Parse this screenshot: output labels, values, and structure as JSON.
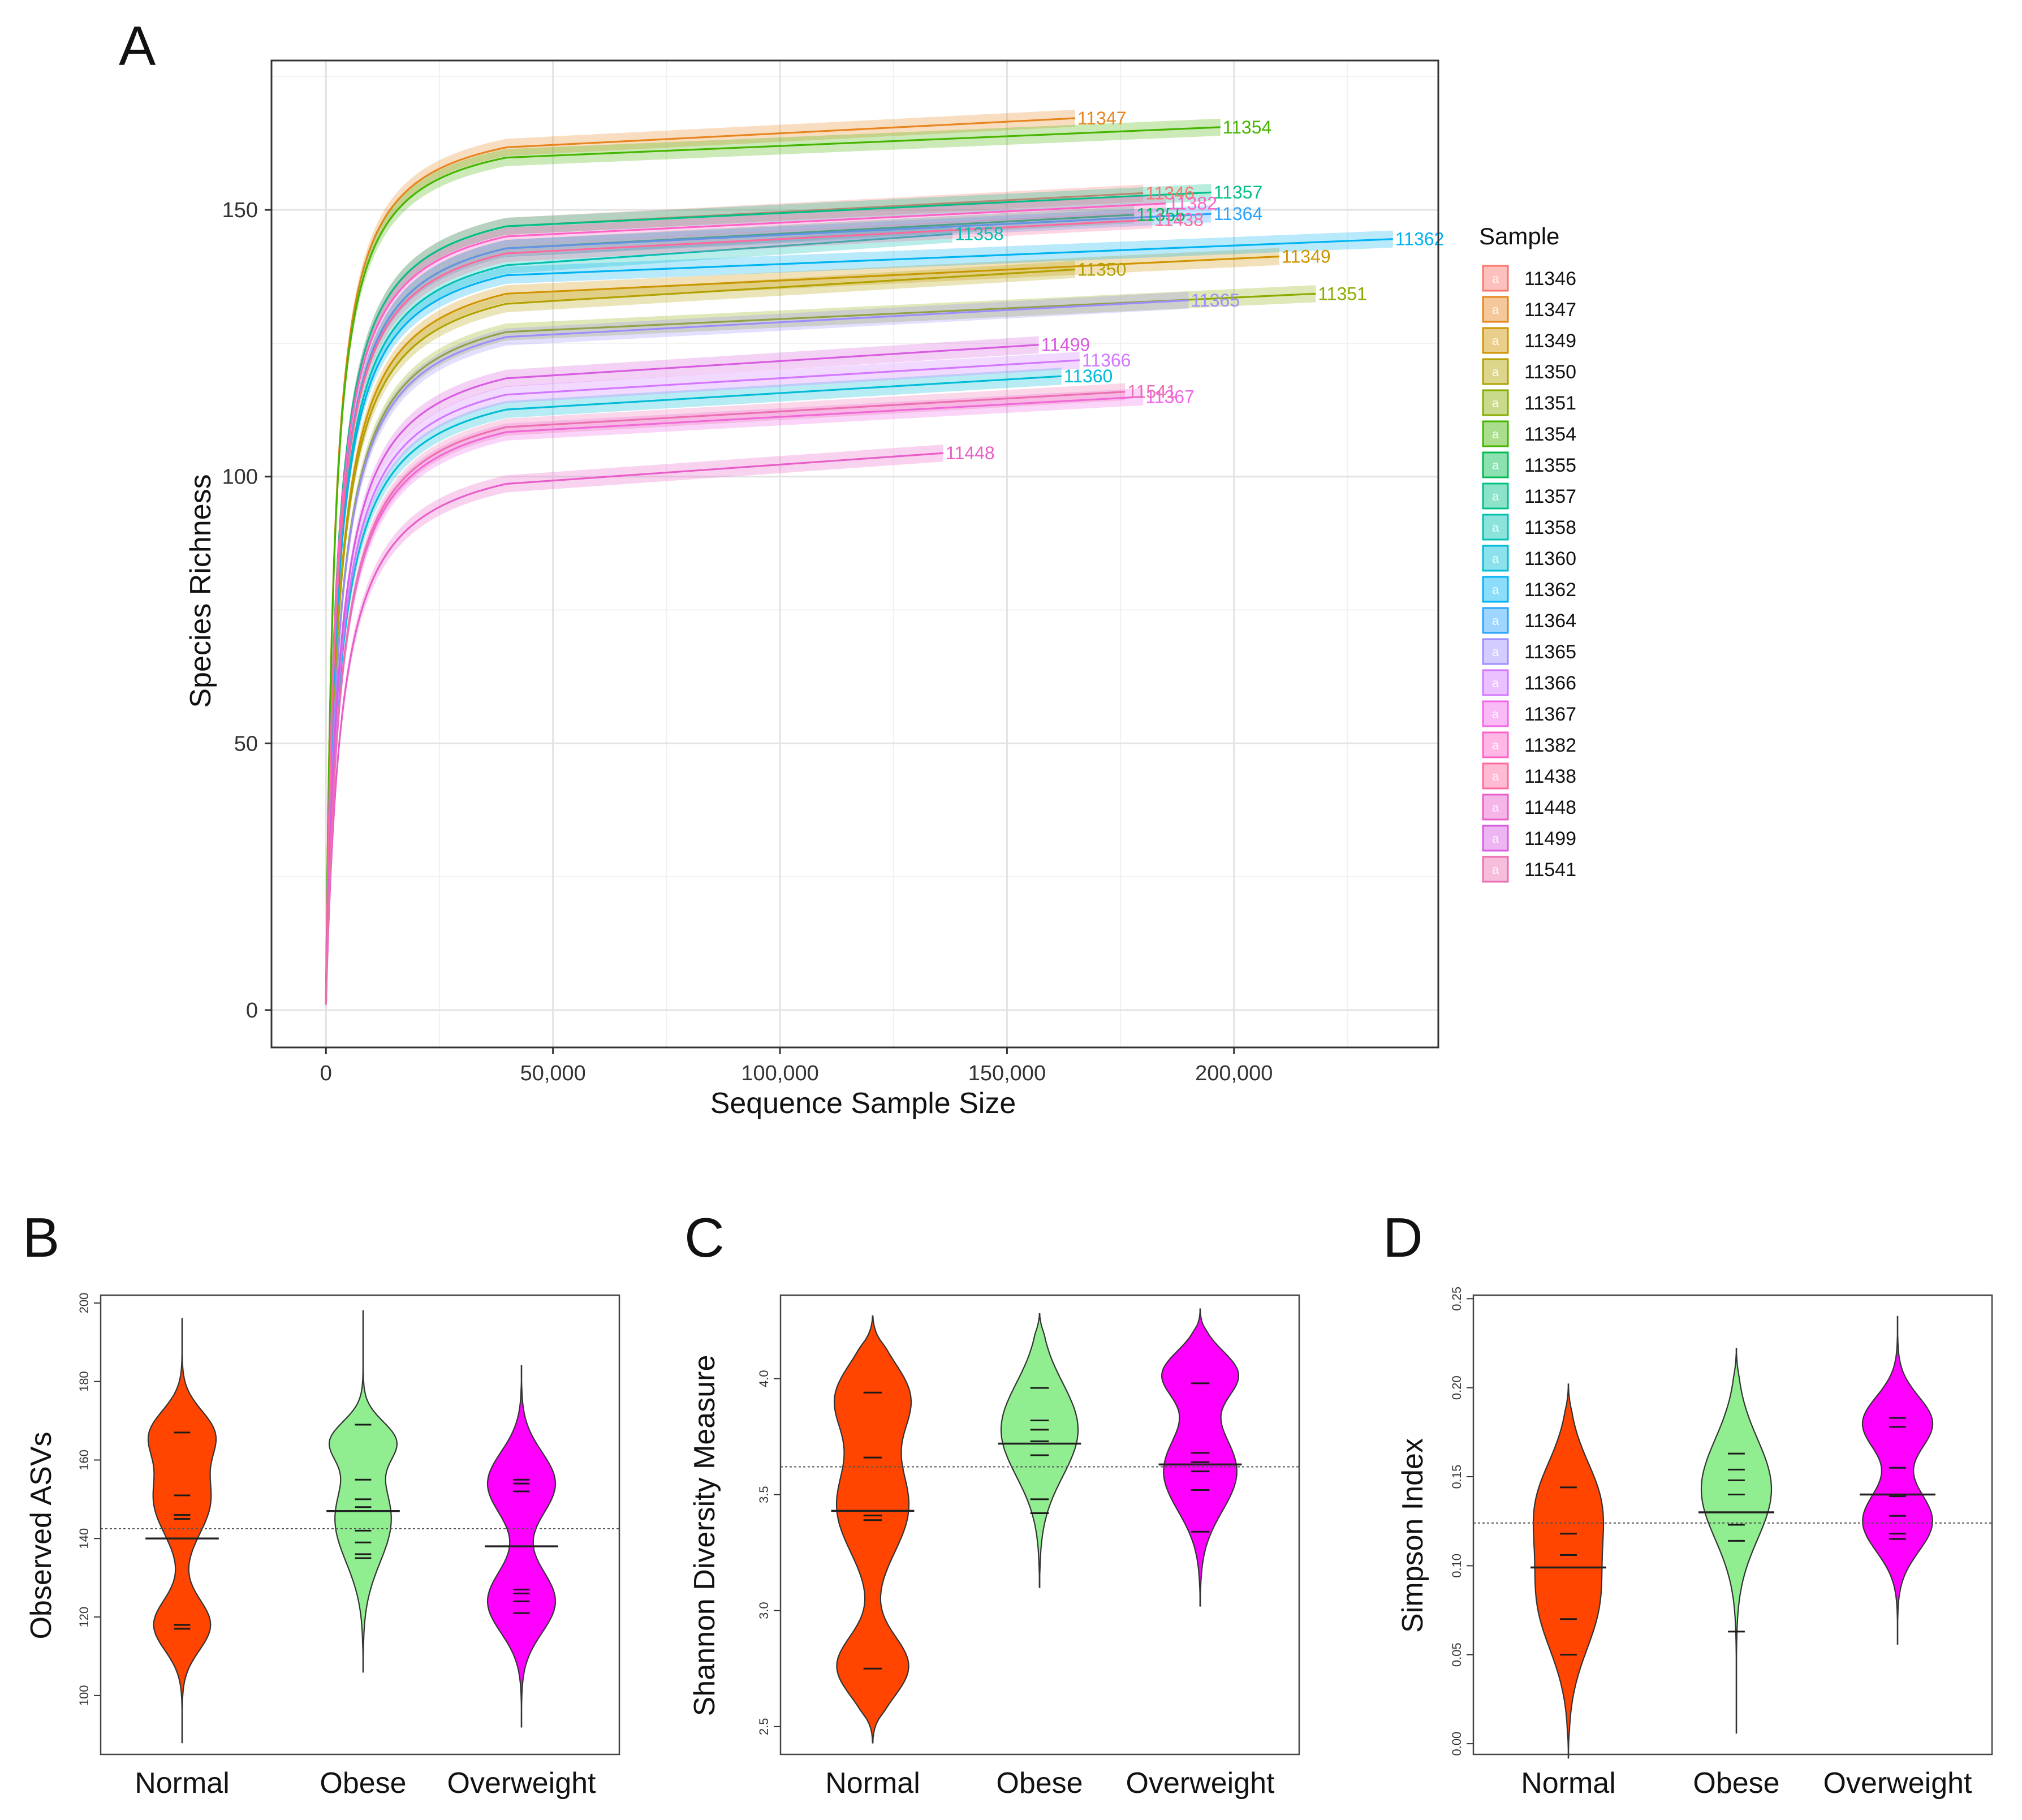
{
  "chart_data": [
    {
      "id": "A",
      "panel_label": "A",
      "type": "line",
      "title": "",
      "xlabel": "Sequence Sample Size",
      "ylabel": "Species Richness",
      "xlim": [
        -12000,
        245000
      ],
      "ylim": [
        -7,
        178
      ],
      "x_ticks": [
        0,
        50000,
        100000,
        150000,
        200000
      ],
      "x_tick_labels": [
        "0",
        "50,000",
        "100,000",
        "150,000",
        "200,000"
      ],
      "y_ticks": [
        0,
        50,
        100,
        150
      ],
      "y_tick_labels": [
        "0",
        "50",
        "100",
        "150"
      ],
      "legend_title": "Sample",
      "legend_position": "right",
      "legend_glyph": "a",
      "series": [
        {
          "name": "11346",
          "label": "11346",
          "color": "#F8766D",
          "asymptote": 155,
          "max_x": 180000,
          "halfk": 2200
        },
        {
          "name": "11347",
          "label": "11347",
          "color": "#E7851E",
          "asymptote": 169,
          "max_x": 165000,
          "halfk": 1800
        },
        {
          "name": "11349",
          "label": "11349",
          "color": "#D09400",
          "asymptote": 143,
          "max_x": 210000,
          "halfk": 2600
        },
        {
          "name": "11350",
          "label": "11350",
          "color": "#B2A100",
          "asymptote": 141,
          "max_x": 165000,
          "halfk": 2600
        },
        {
          "name": "11351",
          "label": "11351",
          "color": "#89AC00",
          "asymptote": 136,
          "max_x": 218000,
          "halfk": 2800
        },
        {
          "name": "11354",
          "label": "11354",
          "color": "#45B500",
          "asymptote": 167,
          "max_x": 197000,
          "halfk": 1800
        },
        {
          "name": "11355",
          "label": "11355",
          "color": "#00BC51",
          "asymptote": 151,
          "max_x": 178000,
          "halfk": 2300
        },
        {
          "name": "11357",
          "label": "11357",
          "color": "#00C087",
          "asymptote": 155,
          "max_x": 195000,
          "halfk": 2200
        },
        {
          "name": "11358",
          "label": "11358",
          "color": "#00C0B2",
          "asymptote": 148,
          "max_x": 138000,
          "halfk": 2400
        },
        {
          "name": "11360",
          "label": "11360",
          "color": "#00BCD6",
          "asymptote": 121,
          "max_x": 162000,
          "halfk": 3000
        },
        {
          "name": "11362",
          "label": "11362",
          "color": "#00B3F2",
          "asymptote": 146,
          "max_x": 235000,
          "halfk": 2400
        },
        {
          "name": "11364",
          "label": "11364",
          "color": "#29A3FF",
          "asymptote": 151,
          "max_x": 195000,
          "halfk": 2300
        },
        {
          "name": "11365",
          "label": "11365",
          "color": "#9C8DFF",
          "asymptote": 135,
          "max_x": 190000,
          "halfk": 2800
        },
        {
          "name": "11366",
          "label": "11366",
          "color": "#D277FF",
          "asymptote": 124,
          "max_x": 166000,
          "halfk": 3000
        },
        {
          "name": "11367",
          "label": "11367",
          "color": "#F166E8",
          "asymptote": 117,
          "max_x": 180000,
          "halfk": 3200
        },
        {
          "name": "11382",
          "label": "11382",
          "color": "#FF61C7",
          "asymptote": 153,
          "max_x": 185000,
          "halfk": 2200
        },
        {
          "name": "11438",
          "label": "11438",
          "color": "#FF689E",
          "asymptote": 150,
          "max_x": 182000,
          "halfk": 2300
        },
        {
          "name": "11448",
          "label": "11448",
          "color": "#E85EC9",
          "asymptote": 107,
          "max_x": 136000,
          "halfk": 3400
        },
        {
          "name": "11499",
          "label": "11499",
          "color": "#D85CE0",
          "asymptote": 127,
          "max_x": 157000,
          "halfk": 2900
        },
        {
          "name": "11541",
          "label": "11541",
          "color": "#EC6FB0",
          "asymptote": 118,
          "max_x": 176000,
          "halfk": 3200
        }
      ]
    },
    {
      "id": "B",
      "panel_label": "B",
      "type": "violin",
      "ylabel": "Observed ASVs",
      "categories": [
        "Normal",
        "Obese",
        "Overweight"
      ],
      "colors": [
        "#FF4500",
        "#90EE90",
        "#FF00FF"
      ],
      "ylim": [
        85,
        202
      ],
      "y_ticks": [
        100,
        120,
        140,
        160,
        180,
        200
      ],
      "y_tick_labels": [
        "100",
        "120",
        "140",
        "160",
        "180",
        "200"
      ],
      "overall_mean": 142.5,
      "groups": [
        {
          "name": "Normal",
          "min": 88,
          "max": 196,
          "mean": 140,
          "points": [
            117,
            118,
            145,
            146,
            151,
            167
          ],
          "modes": [
            [
              118,
              6.5
            ],
            [
              150,
              9
            ],
            [
              167,
              6
            ]
          ]
        },
        {
          "name": "Obese",
          "min": 106,
          "max": 198,
          "mean": 147,
          "points": [
            135,
            136,
            139,
            142,
            147,
            148,
            150,
            155,
            169
          ],
          "modes": [
            [
              145,
              11
            ],
            [
              165,
              5
            ]
          ]
        },
        {
          "name": "Overweight",
          "min": 92,
          "max": 184,
          "mean": 138,
          "points": [
            121,
            124,
            126,
            127,
            152,
            154,
            155
          ],
          "modes": [
            [
              124,
              8
            ],
            [
              154,
              8
            ]
          ]
        }
      ]
    },
    {
      "id": "C",
      "panel_label": "C",
      "type": "violin",
      "ylabel": "Shannon Diversity Measure",
      "categories": [
        "Normal",
        "Obese",
        "Overweight"
      ],
      "colors": [
        "#FF4500",
        "#90EE90",
        "#FF00FF"
      ],
      "ylim": [
        2.38,
        4.36
      ],
      "y_ticks": [
        2.5,
        3.0,
        3.5,
        4.0
      ],
      "y_tick_labels": [
        "2.5",
        "3.0",
        "3.5",
        "4.0"
      ],
      "overall_mean": 3.62,
      "groups": [
        {
          "name": "Normal",
          "min": 2.43,
          "max": 4.27,
          "mean": 3.43,
          "points": [
            2.75,
            3.39,
            3.41,
            3.66,
            3.94
          ],
          "modes": [
            [
              2.76,
              0.13
            ],
            [
              3.45,
              0.2
            ],
            [
              3.92,
              0.15
            ]
          ]
        },
        {
          "name": "Obese",
          "min": 3.1,
          "max": 4.28,
          "mean": 3.72,
          "points": [
            3.42,
            3.48,
            3.67,
            3.72,
            3.73,
            3.78,
            3.82,
            3.96
          ],
          "modes": [
            [
              3.78,
              0.2
            ]
          ]
        },
        {
          "name": "Overweight",
          "min": 3.02,
          "max": 4.3,
          "mean": 3.63,
          "points": [
            3.34,
            3.52,
            3.6,
            3.63,
            3.64,
            3.68,
            3.98
          ],
          "modes": [
            [
              3.6,
              0.17
            ],
            [
              4.02,
              0.1
            ]
          ]
        }
      ]
    },
    {
      "id": "D",
      "panel_label": "D",
      "type": "violin",
      "ylabel": "Simpson Index",
      "categories": [
        "Normal",
        "Obese",
        "Overweight"
      ],
      "colors": [
        "#FF4500",
        "#90EE90",
        "#FF00FF"
      ],
      "ylim": [
        -0.006,
        0.252
      ],
      "y_ticks": [
        0.0,
        0.05,
        0.1,
        0.15,
        0.2,
        0.25
      ],
      "y_tick_labels": [
        "0.00",
        "0.05",
        "0.10",
        "0.15",
        "0.20",
        "0.25"
      ],
      "overall_mean": 0.124,
      "groups": [
        {
          "name": "Normal",
          "min": -0.008,
          "max": 0.202,
          "mean": 0.099,
          "points": [
            0.05,
            0.07,
            0.106,
            0.118,
            0.144
          ],
          "modes": [
            [
              0.08,
              0.028
            ],
            [
              0.135,
              0.025
            ]
          ]
        },
        {
          "name": "Obese",
          "min": 0.006,
          "max": 0.222,
          "mean": 0.13,
          "points": [
            0.063,
            0.114,
            0.123,
            0.14,
            0.148,
            0.154,
            0.163
          ],
          "modes": [
            [
              0.143,
              0.028
            ]
          ]
        },
        {
          "name": "Overweight",
          "min": 0.056,
          "max": 0.24,
          "mean": 0.14,
          "points": [
            0.115,
            0.118,
            0.128,
            0.139,
            0.155,
            0.178,
            0.183
          ],
          "modes": [
            [
              0.125,
              0.017
            ],
            [
              0.18,
              0.015
            ]
          ]
        }
      ]
    }
  ]
}
